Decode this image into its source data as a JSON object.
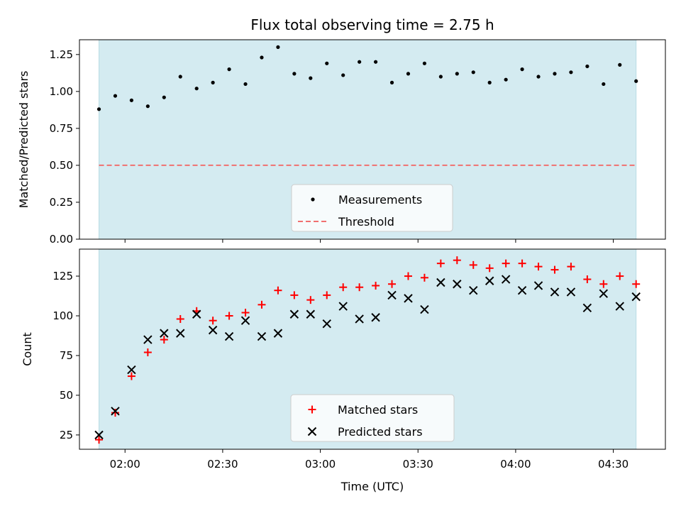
{
  "chart_data": [
    {
      "type": "scatter",
      "title": "Flux total observing time = 2.75 h",
      "xlabel": "",
      "ylabel": "Matched/Predicted stars",
      "ylim": [
        0,
        1.35
      ],
      "yticks": [
        0.0,
        0.25,
        0.5,
        0.75,
        1.0,
        1.25
      ],
      "yticklabels": [
        "0.00",
        "0.25",
        "0.50",
        "0.75",
        "1.00",
        "1.25"
      ],
      "legend_position": "lower-center",
      "background_color": "#d4ebf1",
      "series": [
        {
          "name": "Measurements",
          "marker": "dot",
          "color": "#000000",
          "x": [
            "01:52",
            "01:57",
            "02:02",
            "02:07",
            "02:12",
            "02:17",
            "02:22",
            "02:27",
            "02:32",
            "02:37",
            "02:42",
            "02:47",
            "02:52",
            "02:57",
            "03:02",
            "03:07",
            "03:12",
            "03:17",
            "03:22",
            "03:27",
            "03:32",
            "03:37",
            "03:42",
            "03:47",
            "03:52",
            "03:57",
            "04:02",
            "04:07",
            "04:12",
            "04:17",
            "04:22",
            "04:27",
            "04:32",
            "04:37"
          ],
          "y": [
            0.88,
            0.97,
            0.94,
            0.9,
            0.96,
            1.1,
            1.02,
            1.06,
            1.15,
            1.05,
            1.23,
            1.3,
            1.12,
            1.09,
            1.19,
            1.11,
            1.2,
            1.2,
            1.06,
            1.12,
            1.19,
            1.1,
            1.12,
            1.13,
            1.06,
            1.08,
            1.15,
            1.1,
            1.12,
            1.13,
            1.17,
            1.05,
            1.18,
            1.07
          ]
        },
        {
          "name": "Threshold",
          "style": "dashed-line",
          "color": "#f07070",
          "y": 0.5
        }
      ]
    },
    {
      "type": "scatter",
      "title": "",
      "xlabel": "Time (UTC)",
      "ylabel": "Count",
      "ylim": [
        16,
        142
      ],
      "yticks": [
        25,
        50,
        75,
        100,
        125
      ],
      "yticklabels": [
        "25",
        "50",
        "75",
        "100",
        "125"
      ],
      "xlim": [
        "01:46",
        "04:46"
      ],
      "xticks": [
        "02:00",
        "02:30",
        "03:00",
        "03:30",
        "04:00",
        "04:30"
      ],
      "legend_position": "lower-center",
      "background_color": "#d4ebf1",
      "shaded_span": [
        "01:52",
        "04:37"
      ],
      "series": [
        {
          "name": "Matched stars",
          "marker": "plus",
          "color": "#ff0000",
          "x": [
            "01:52",
            "01:57",
            "02:02",
            "02:07",
            "02:12",
            "02:17",
            "02:22",
            "02:27",
            "02:32",
            "02:37",
            "02:42",
            "02:47",
            "02:52",
            "02:57",
            "03:02",
            "03:07",
            "03:12",
            "03:17",
            "03:22",
            "03:27",
            "03:32",
            "03:37",
            "03:42",
            "03:47",
            "03:52",
            "03:57",
            "04:02",
            "04:07",
            "04:12",
            "04:17",
            "04:22",
            "04:27",
            "04:32",
            "04:37"
          ],
          "y": [
            22,
            39,
            62,
            77,
            85,
            98,
            103,
            97,
            100,
            102,
            107,
            116,
            113,
            110,
            113,
            118,
            118,
            119,
            120,
            125,
            124,
            133,
            135,
            132,
            130,
            133,
            133,
            131,
            129,
            131,
            123,
            120,
            125,
            120
          ]
        },
        {
          "name": "Predicted stars",
          "marker": "x",
          "color": "#000000",
          "x": [
            "01:52",
            "01:57",
            "02:02",
            "02:07",
            "02:12",
            "02:17",
            "02:22",
            "02:27",
            "02:32",
            "02:37",
            "02:42",
            "02:47",
            "02:52",
            "02:57",
            "03:02",
            "03:07",
            "03:12",
            "03:17",
            "03:22",
            "03:27",
            "03:32",
            "03:37",
            "03:42",
            "03:47",
            "03:52",
            "03:57",
            "04:02",
            "04:07",
            "04:12",
            "04:17",
            "04:22",
            "04:27",
            "04:32",
            "04:37"
          ],
          "y": [
            25,
            40,
            66,
            85,
            89,
            89,
            101,
            91,
            87,
            97,
            87,
            89,
            101,
            101,
            95,
            106,
            98,
            99,
            113,
            111,
            104,
            121,
            120,
            116,
            122,
            123,
            116,
            119,
            115,
            115,
            105,
            114,
            106,
            112
          ]
        }
      ]
    }
  ]
}
